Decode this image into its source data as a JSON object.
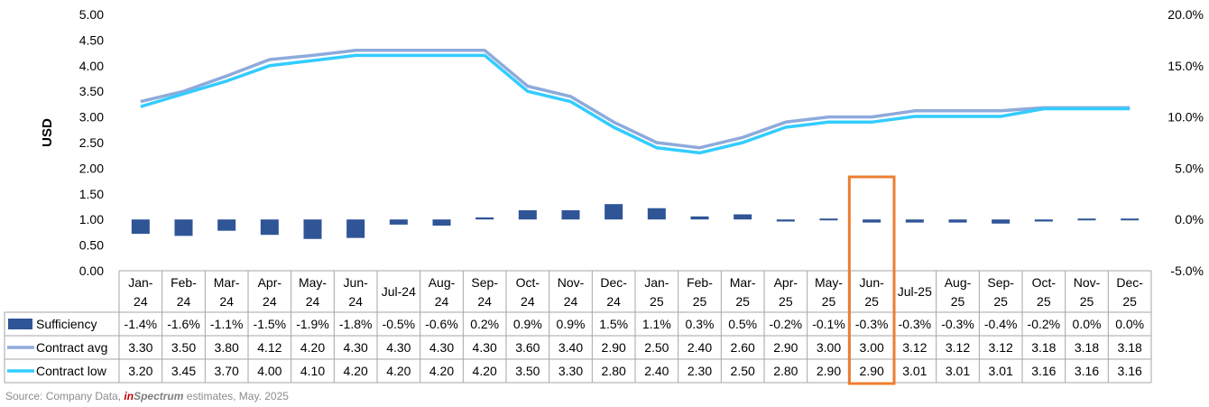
{
  "chart_data": {
    "type": "bar+line",
    "categories": [
      [
        "Jan-",
        "24"
      ],
      [
        "Feb-",
        "24"
      ],
      [
        "Mar-",
        "24"
      ],
      [
        "Apr-",
        "24"
      ],
      [
        "May-",
        "24"
      ],
      [
        "Jun-",
        "24"
      ],
      [
        "Jul-24"
      ],
      [
        "Aug-",
        "24"
      ],
      [
        "Sep-",
        "24"
      ],
      [
        "Oct-",
        "24"
      ],
      [
        "Nov-",
        "24"
      ],
      [
        "Dec-",
        "24"
      ],
      [
        "Jan-",
        "25"
      ],
      [
        "Feb-",
        "25"
      ],
      [
        "Mar-",
        "25"
      ],
      [
        "Apr-",
        "25"
      ],
      [
        "May-",
        "25"
      ],
      [
        "Jun-",
        "25"
      ],
      [
        "Jul-25"
      ],
      [
        "Aug-",
        "25"
      ],
      [
        "Sep-",
        "25"
      ],
      [
        "Oct-",
        "25"
      ],
      [
        "Nov-",
        "25"
      ],
      [
        "Dec-",
        "25"
      ]
    ],
    "ylabel": "USD",
    "y_left": {
      "min": 0,
      "max": 5,
      "step": 0.5,
      "ticks": [
        "0.00",
        "0.50",
        "1.00",
        "1.50",
        "2.00",
        "2.50",
        "3.00",
        "3.50",
        "4.00",
        "4.50",
        "5.00"
      ]
    },
    "y_right": {
      "min": -5,
      "max": 20,
      "step": 5,
      "ticks": [
        "-5.0%",
        "0.0%",
        "5.0%",
        "10.0%",
        "15.0%",
        "20.0%"
      ]
    },
    "grid": false,
    "legend": "data-table",
    "highlight_category_index": 17,
    "highlight_color": "#ed7d31",
    "series": [
      {
        "name": "Sufficiency",
        "type": "bar",
        "axis": "right",
        "color": "#2f5597",
        "values": [
          -1.4,
          -1.6,
          -1.1,
          -1.5,
          -1.9,
          -1.8,
          -0.5,
          -0.6,
          0.2,
          0.9,
          0.9,
          1.5,
          1.1,
          0.3,
          0.5,
          -0.2,
          -0.1,
          -0.3,
          -0.3,
          -0.3,
          -0.4,
          -0.2,
          0.0,
          0.0
        ],
        "labels": [
          "-1.4%",
          "-1.6%",
          "-1.1%",
          "-1.5%",
          "-1.9%",
          "-1.8%",
          "-0.5%",
          "-0.6%",
          "0.2%",
          "0.9%",
          "0.9%",
          "1.5%",
          "1.1%",
          "0.3%",
          "0.5%",
          "-0.2%",
          "-0.1%",
          "-0.3%",
          "-0.3%",
          "-0.3%",
          "-0.4%",
          "-0.2%",
          "0.0%",
          "0.0%"
        ]
      },
      {
        "name": "Contract avg",
        "type": "line",
        "axis": "left",
        "color": "#8eaadb",
        "values": [
          3.3,
          3.5,
          3.8,
          4.12,
          4.2,
          4.3,
          4.3,
          4.3,
          4.3,
          3.6,
          3.4,
          2.9,
          2.5,
          2.4,
          2.6,
          2.9,
          3.0,
          3.0,
          3.12,
          3.12,
          3.12,
          3.18,
          3.18,
          3.18
        ],
        "labels": [
          "3.30",
          "3.50",
          "3.80",
          "4.12",
          "4.20",
          "4.30",
          "4.30",
          "4.30",
          "4.30",
          "3.60",
          "3.40",
          "2.90",
          "2.50",
          "2.40",
          "2.60",
          "2.90",
          "3.00",
          "3.00",
          "3.12",
          "3.12",
          "3.12",
          "3.18",
          "3.18",
          "3.18"
        ]
      },
      {
        "name": "Contract low",
        "type": "line",
        "axis": "left",
        "color": "#33ccff",
        "values": [
          3.2,
          3.45,
          3.7,
          4.0,
          4.1,
          4.2,
          4.2,
          4.2,
          4.2,
          3.5,
          3.3,
          2.8,
          2.4,
          2.3,
          2.5,
          2.8,
          2.9,
          2.9,
          3.01,
          3.01,
          3.01,
          3.16,
          3.16,
          3.16
        ],
        "labels": [
          "3.20",
          "3.45",
          "3.70",
          "4.00",
          "4.10",
          "4.20",
          "4.20",
          "4.20",
          "4.20",
          "3.50",
          "3.30",
          "2.80",
          "2.40",
          "2.30",
          "2.50",
          "2.80",
          "2.90",
          "2.90",
          "3.01",
          "3.01",
          "3.01",
          "3.16",
          "3.16",
          "3.16"
        ]
      }
    ]
  },
  "source": {
    "prefix": "Source: Company Data,",
    "brand_in": "in",
    "brand_rest": "Spectrum",
    "suffix": "estimates,  May. 2025"
  }
}
